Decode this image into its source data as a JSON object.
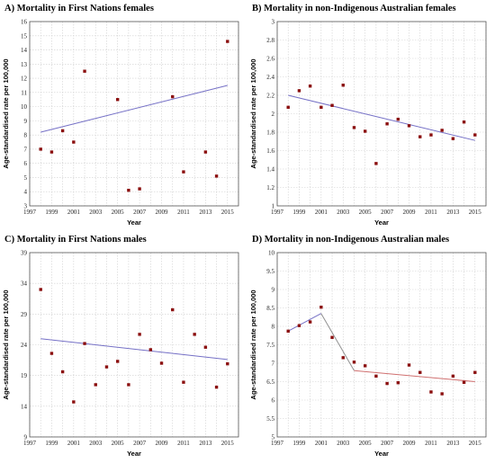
{
  "chart_data": [
    {
      "type": "scatter",
      "title": "A) Mortality  in First Nations females",
      "xlabel": "Year",
      "ylabel": "Age-standardised rate per 100,000",
      "xlim": [
        1997,
        2016
      ],
      "ylim": [
        3,
        16
      ],
      "xticks": [
        "1997",
        "1999",
        "2001",
        "2003",
        "2005",
        "2007",
        "2009",
        "2011",
        "2013",
        "2015"
      ],
      "yticks": [
        "3",
        "4",
        "5",
        "6",
        "7",
        "8",
        "9",
        "10",
        "11",
        "12",
        "13",
        "14",
        "15",
        "16"
      ],
      "grid": true,
      "points": [
        {
          "x": 1998,
          "y": 7.0
        },
        {
          "x": 1999,
          "y": 6.8
        },
        {
          "x": 2000,
          "y": 8.3
        },
        {
          "x": 2001,
          "y": 7.5
        },
        {
          "x": 2002,
          "y": 12.5
        },
        {
          "x": 2005,
          "y": 10.5
        },
        {
          "x": 2006,
          "y": 4.1
        },
        {
          "x": 2007,
          "y": 4.2
        },
        {
          "x": 2010,
          "y": 10.7
        },
        {
          "x": 2011,
          "y": 5.4
        },
        {
          "x": 2013,
          "y": 6.8
        },
        {
          "x": 2014,
          "y": 5.1
        },
        {
          "x": 2015,
          "y": 14.6
        }
      ],
      "fit_lines": [
        {
          "color": "#7570c6",
          "points": [
            {
              "x": 1998,
              "y": 8.2
            },
            {
              "x": 2015,
              "y": 11.5
            }
          ]
        }
      ]
    },
    {
      "type": "scatter",
      "title": "B) Mortality in non-Indigenous Australian females",
      "xlabel": "Year",
      "ylabel": "Age-standardised rate per 100,000",
      "xlim": [
        1997,
        2016
      ],
      "ylim": [
        1,
        3
      ],
      "xticks": [
        "1997",
        "1999",
        "2001",
        "2003",
        "2005",
        "2007",
        "2009",
        "2011",
        "2013",
        "2015"
      ],
      "yticks": [
        "1",
        "1.2",
        "1.4",
        "1.6",
        "1.8",
        "2",
        "2.2",
        "2.4",
        "2.6",
        "2.8",
        "3"
      ],
      "grid": true,
      "points": [
        {
          "x": 1998,
          "y": 2.07
        },
        {
          "x": 1999,
          "y": 2.25
        },
        {
          "x": 2000,
          "y": 2.3
        },
        {
          "x": 2001,
          "y": 2.07
        },
        {
          "x": 2002,
          "y": 2.09
        },
        {
          "x": 2003,
          "y": 2.31
        },
        {
          "x": 2004,
          "y": 1.85
        },
        {
          "x": 2005,
          "y": 1.81
        },
        {
          "x": 2006,
          "y": 1.46
        },
        {
          "x": 2007,
          "y": 1.89
        },
        {
          "x": 2008,
          "y": 1.94
        },
        {
          "x": 2009,
          "y": 1.87
        },
        {
          "x": 2010,
          "y": 1.75
        },
        {
          "x": 2011,
          "y": 1.77
        },
        {
          "x": 2012,
          "y": 1.82
        },
        {
          "x": 2013,
          "y": 1.73
        },
        {
          "x": 2014,
          "y": 1.91
        },
        {
          "x": 2015,
          "y": 1.77
        }
      ],
      "fit_lines": [
        {
          "color": "#7570c6",
          "points": [
            {
              "x": 1998,
              "y": 2.2
            },
            {
              "x": 2015,
              "y": 1.71
            }
          ]
        }
      ]
    },
    {
      "type": "scatter",
      "title": "C) Mortality in First Nations males",
      "xlabel": "Year",
      "ylabel": "Age-standardised rate per 100,000",
      "xlim": [
        1997,
        2016
      ],
      "ylim": [
        9,
        39
      ],
      "xticks": [
        "1997",
        "1999",
        "2001",
        "2003",
        "2005",
        "2007",
        "2009",
        "2011",
        "2013",
        "2015"
      ],
      "yticks": [
        "9",
        "14",
        "19",
        "24",
        "29",
        "34",
        "39"
      ],
      "grid": true,
      "points": [
        {
          "x": 1998,
          "y": 33.0
        },
        {
          "x": 1999,
          "y": 22.6
        },
        {
          "x": 2000,
          "y": 19.6
        },
        {
          "x": 2001,
          "y": 14.7
        },
        {
          "x": 2002,
          "y": 24.2
        },
        {
          "x": 2003,
          "y": 17.5
        },
        {
          "x": 2004,
          "y": 20.4
        },
        {
          "x": 2005,
          "y": 21.3
        },
        {
          "x": 2006,
          "y": 17.5
        },
        {
          "x": 2007,
          "y": 25.7
        },
        {
          "x": 2008,
          "y": 23.2
        },
        {
          "x": 2009,
          "y": 21.0
        },
        {
          "x": 2010,
          "y": 29.7
        },
        {
          "x": 2011,
          "y": 17.9
        },
        {
          "x": 2012,
          "y": 25.7
        },
        {
          "x": 2013,
          "y": 23.6
        },
        {
          "x": 2014,
          "y": 17.1
        },
        {
          "x": 2015,
          "y": 20.9
        }
      ],
      "fit_lines": [
        {
          "color": "#7570c6",
          "points": [
            {
              "x": 1998,
              "y": 25.0
            },
            {
              "x": 2015,
              "y": 21.6
            }
          ]
        }
      ]
    },
    {
      "type": "scatter",
      "title": "D) Mortality in non-Indigenous Australian males",
      "xlabel": "Year",
      "ylabel": "Age-standardised rate per 100,000",
      "xlim": [
        1997,
        2016
      ],
      "ylim": [
        5,
        10
      ],
      "xticks": [
        "1997",
        "1999",
        "2001",
        "2003",
        "2005",
        "2007",
        "2009",
        "2011",
        "2013",
        "2015"
      ],
      "yticks": [
        "5",
        "5.5",
        "6",
        "6.5",
        "7",
        "7.5",
        "8",
        "8.5",
        "9",
        "9.5",
        "10"
      ],
      "grid": true,
      "points": [
        {
          "x": 1998,
          "y": 7.87
        },
        {
          "x": 1999,
          "y": 8.02
        },
        {
          "x": 2000,
          "y": 8.12
        },
        {
          "x": 2001,
          "y": 8.52
        },
        {
          "x": 2002,
          "y": 7.7
        },
        {
          "x": 2003,
          "y": 7.15
        },
        {
          "x": 2004,
          "y": 7.03
        },
        {
          "x": 2005,
          "y": 6.93
        },
        {
          "x": 2006,
          "y": 6.65
        },
        {
          "x": 2007,
          "y": 6.45
        },
        {
          "x": 2008,
          "y": 6.47
        },
        {
          "x": 2009,
          "y": 6.95
        },
        {
          "x": 2010,
          "y": 6.75
        },
        {
          "x": 2011,
          "y": 6.22
        },
        {
          "x": 2012,
          "y": 6.17
        },
        {
          "x": 2013,
          "y": 6.65
        },
        {
          "x": 2014,
          "y": 6.48
        },
        {
          "x": 2015,
          "y": 6.75
        }
      ],
      "fit_lines": [
        {
          "color": "#7570c6",
          "points": [
            {
              "x": 1998,
              "y": 7.87
            },
            {
              "x": 2001,
              "y": 8.35
            }
          ]
        },
        {
          "color": "#909090",
          "points": [
            {
              "x": 2001,
              "y": 8.35
            },
            {
              "x": 2004,
              "y": 6.8
            }
          ]
        },
        {
          "color": "#d07070",
          "points": [
            {
              "x": 2004,
              "y": 6.8
            },
            {
              "x": 2015,
              "y": 6.5
            }
          ]
        }
      ]
    }
  ]
}
